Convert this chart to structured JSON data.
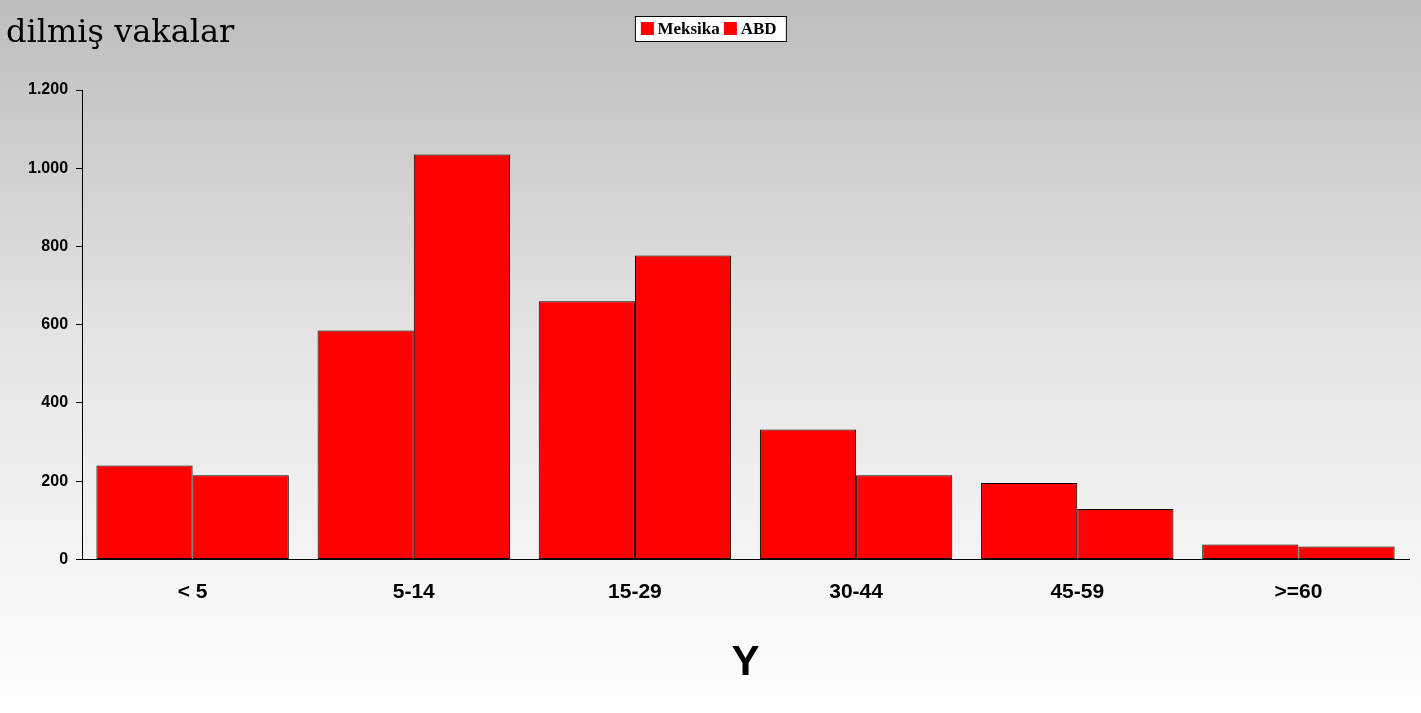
{
  "chart_data": {
    "type": "bar",
    "title": "dilmiş vakalar",
    "xlabel": "Y",
    "categories": [
      "< 5",
      "5-14",
      "15-29",
      "30-44",
      "45-59",
      ">=60"
    ],
    "series": [
      {
        "name": "Meksika",
        "color": "#ff0000",
        "values": [
          240,
          585,
          660,
          332,
          195,
          38
        ]
      },
      {
        "name": "ABD",
        "color": "#ff0000",
        "values": [
          215,
          1035,
          777,
          215,
          129,
          33
        ]
      }
    ],
    "ylim": [
      0,
      1200
    ],
    "yticks": [
      0,
      200,
      400,
      600,
      800,
      {
        "value": 1000,
        "label": "1.000"
      },
      {
        "value": 1200,
        "label": "1.200"
      }
    ],
    "grid": false,
    "legend": "top"
  }
}
